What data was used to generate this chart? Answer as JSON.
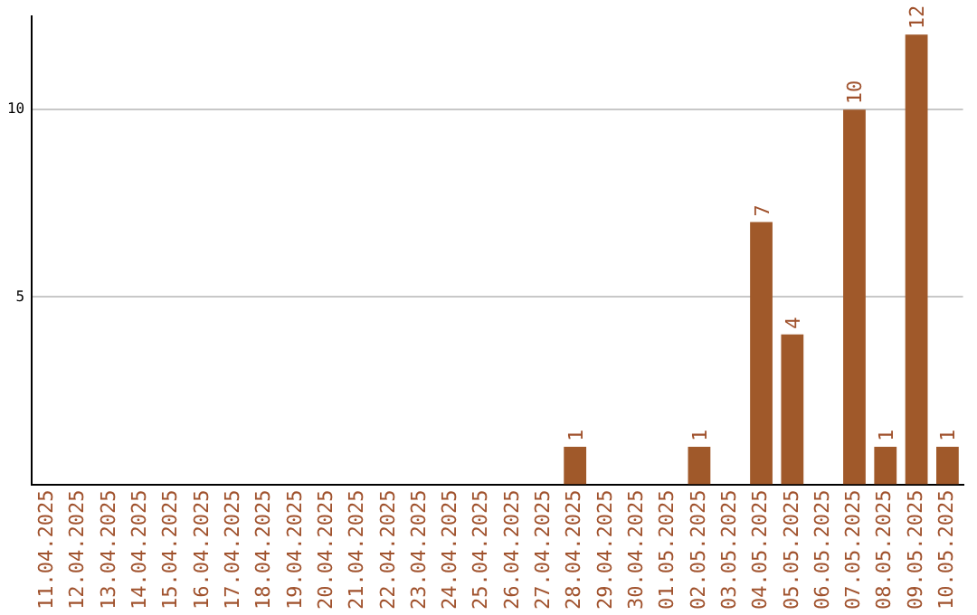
{
  "chart_data": {
    "type": "bar",
    "categories": [
      "11.04.2025",
      "12.04.2025",
      "13.04.2025",
      "14.04.2025",
      "15.04.2025",
      "16.04.2025",
      "17.04.2025",
      "18.04.2025",
      "19.04.2025",
      "20.04.2025",
      "21.04.2025",
      "22.04.2025",
      "23.04.2025",
      "24.04.2025",
      "25.04.2025",
      "26.04.2025",
      "27.04.2025",
      "28.04.2025",
      "29.04.2025",
      "30.04.2025",
      "01.05.2025",
      "02.05.2025",
      "03.05.2025",
      "04.05.2025",
      "05.05.2025",
      "06.05.2025",
      "07.05.2025",
      "08.05.2025",
      "09.05.2025",
      "10.05.2025"
    ],
    "values": [
      0,
      0,
      0,
      0,
      0,
      0,
      0,
      0,
      0,
      0,
      0,
      0,
      0,
      0,
      0,
      0,
      0,
      1,
      0,
      0,
      0,
      1,
      0,
      7,
      4,
      0,
      10,
      1,
      12,
      1
    ],
    "value_labels": [
      null,
      null,
      null,
      null,
      null,
      null,
      null,
      null,
      null,
      null,
      null,
      null,
      null,
      null,
      null,
      null,
      null,
      "1",
      null,
      null,
      null,
      "1",
      null,
      "7",
      "4",
      null,
      "10",
      "1",
      "12",
      "1"
    ],
    "color": "#a0592a",
    "ylim": [
      0,
      12.5
    ],
    "yticks": [
      5,
      10
    ],
    "grid": "y"
  }
}
